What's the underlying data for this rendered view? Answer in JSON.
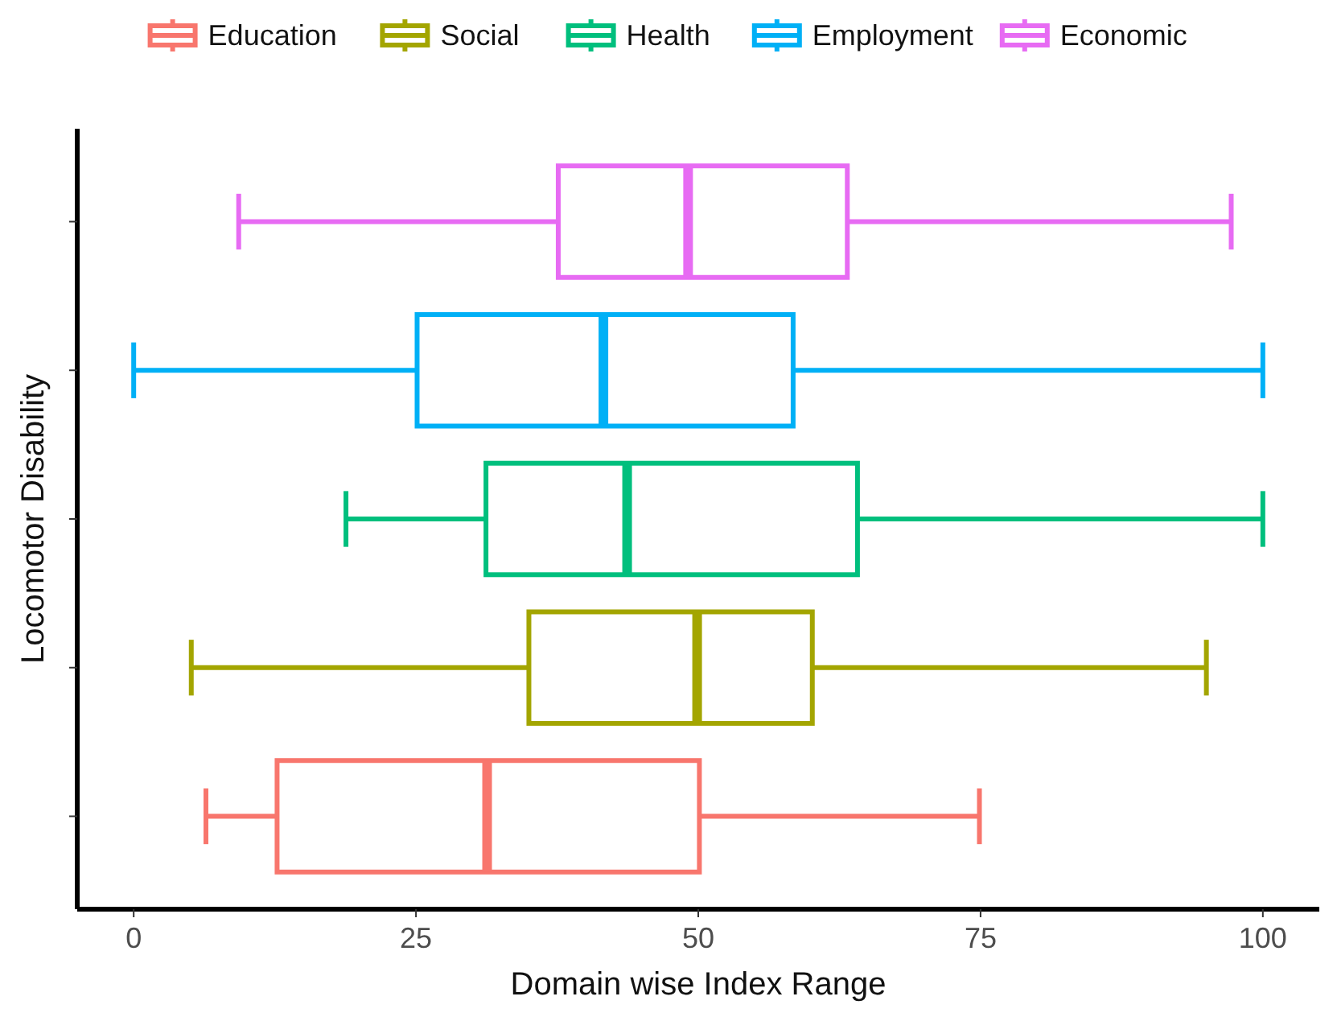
{
  "chart_data": {
    "type": "box",
    "orientation": "horizontal",
    "xlabel": "Domain wise Index Range",
    "ylabel": "Locomotor Disability",
    "categories": [
      null,
      null,
      null,
      null,
      null
    ],
    "xlim": [
      -5,
      105
    ],
    "xticks": [
      0,
      25,
      50,
      75,
      100
    ],
    "grid": false,
    "legend": "top",
    "tick_labels": "x",
    "series": [
      {
        "name": "Education",
        "color": "#f8766d",
        "boxes": [
          null,
          null,
          null,
          null,
          {
            "low": 6.4,
            "q1": 12.7,
            "median": 31.3,
            "q3": 50.1,
            "high": 74.9
          }
        ]
      },
      {
        "name": "Social",
        "color": "#a3a500",
        "boxes": [
          null,
          null,
          null,
          {
            "low": 5.1,
            "q1": 35,
            "median": 49.9,
            "q3": 60.1,
            "high": 95
          },
          null
        ]
      },
      {
        "name": "Health",
        "color": "#00bf7d",
        "boxes": [
          null,
          null,
          {
            "low": 18.8,
            "q1": 31.2,
            "median": 43.7,
            "q3": 64.1,
            "high": 100
          },
          null,
          null
        ]
      },
      {
        "name": "Employment",
        "color": "#00b0f6",
        "boxes": [
          null,
          {
            "low": 0,
            "q1": 25.1,
            "median": 41.6,
            "q3": 58.4,
            "high": 100
          },
          null,
          null,
          null
        ]
      },
      {
        "name": "Economic",
        "color": "#e76bf3",
        "boxes": [
          {
            "low": 9.3,
            "q1": 37.6,
            "median": 49.1,
            "q3": 63.2,
            "high": 97.2
          },
          null,
          null,
          null,
          null
        ]
      }
    ]
  }
}
